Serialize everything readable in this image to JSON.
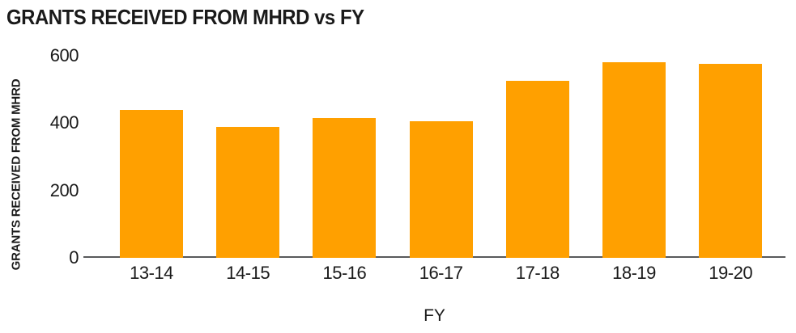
{
  "chart_data": {
    "type": "bar",
    "title": "GRANTS RECEIVED FROM MHRD vs FY",
    "categories": [
      "13-14",
      "14-15",
      "15-16",
      "16-17",
      "17-18",
      "18-19",
      "19-20"
    ],
    "values": [
      440,
      390,
      415,
      405,
      525,
      580,
      575
    ],
    "xlabel": "FY",
    "ylabel": "GRANTS RECEIVED FROM MHRD",
    "ylim": [
      0,
      600
    ],
    "yticks": [
      0,
      200,
      400,
      600
    ],
    "grid": false,
    "legend": false,
    "bar_color": "#FFA000",
    "axis_line_color": "#58595b",
    "text_color": "#1a1a1a",
    "background_color": "#ffffff"
  }
}
